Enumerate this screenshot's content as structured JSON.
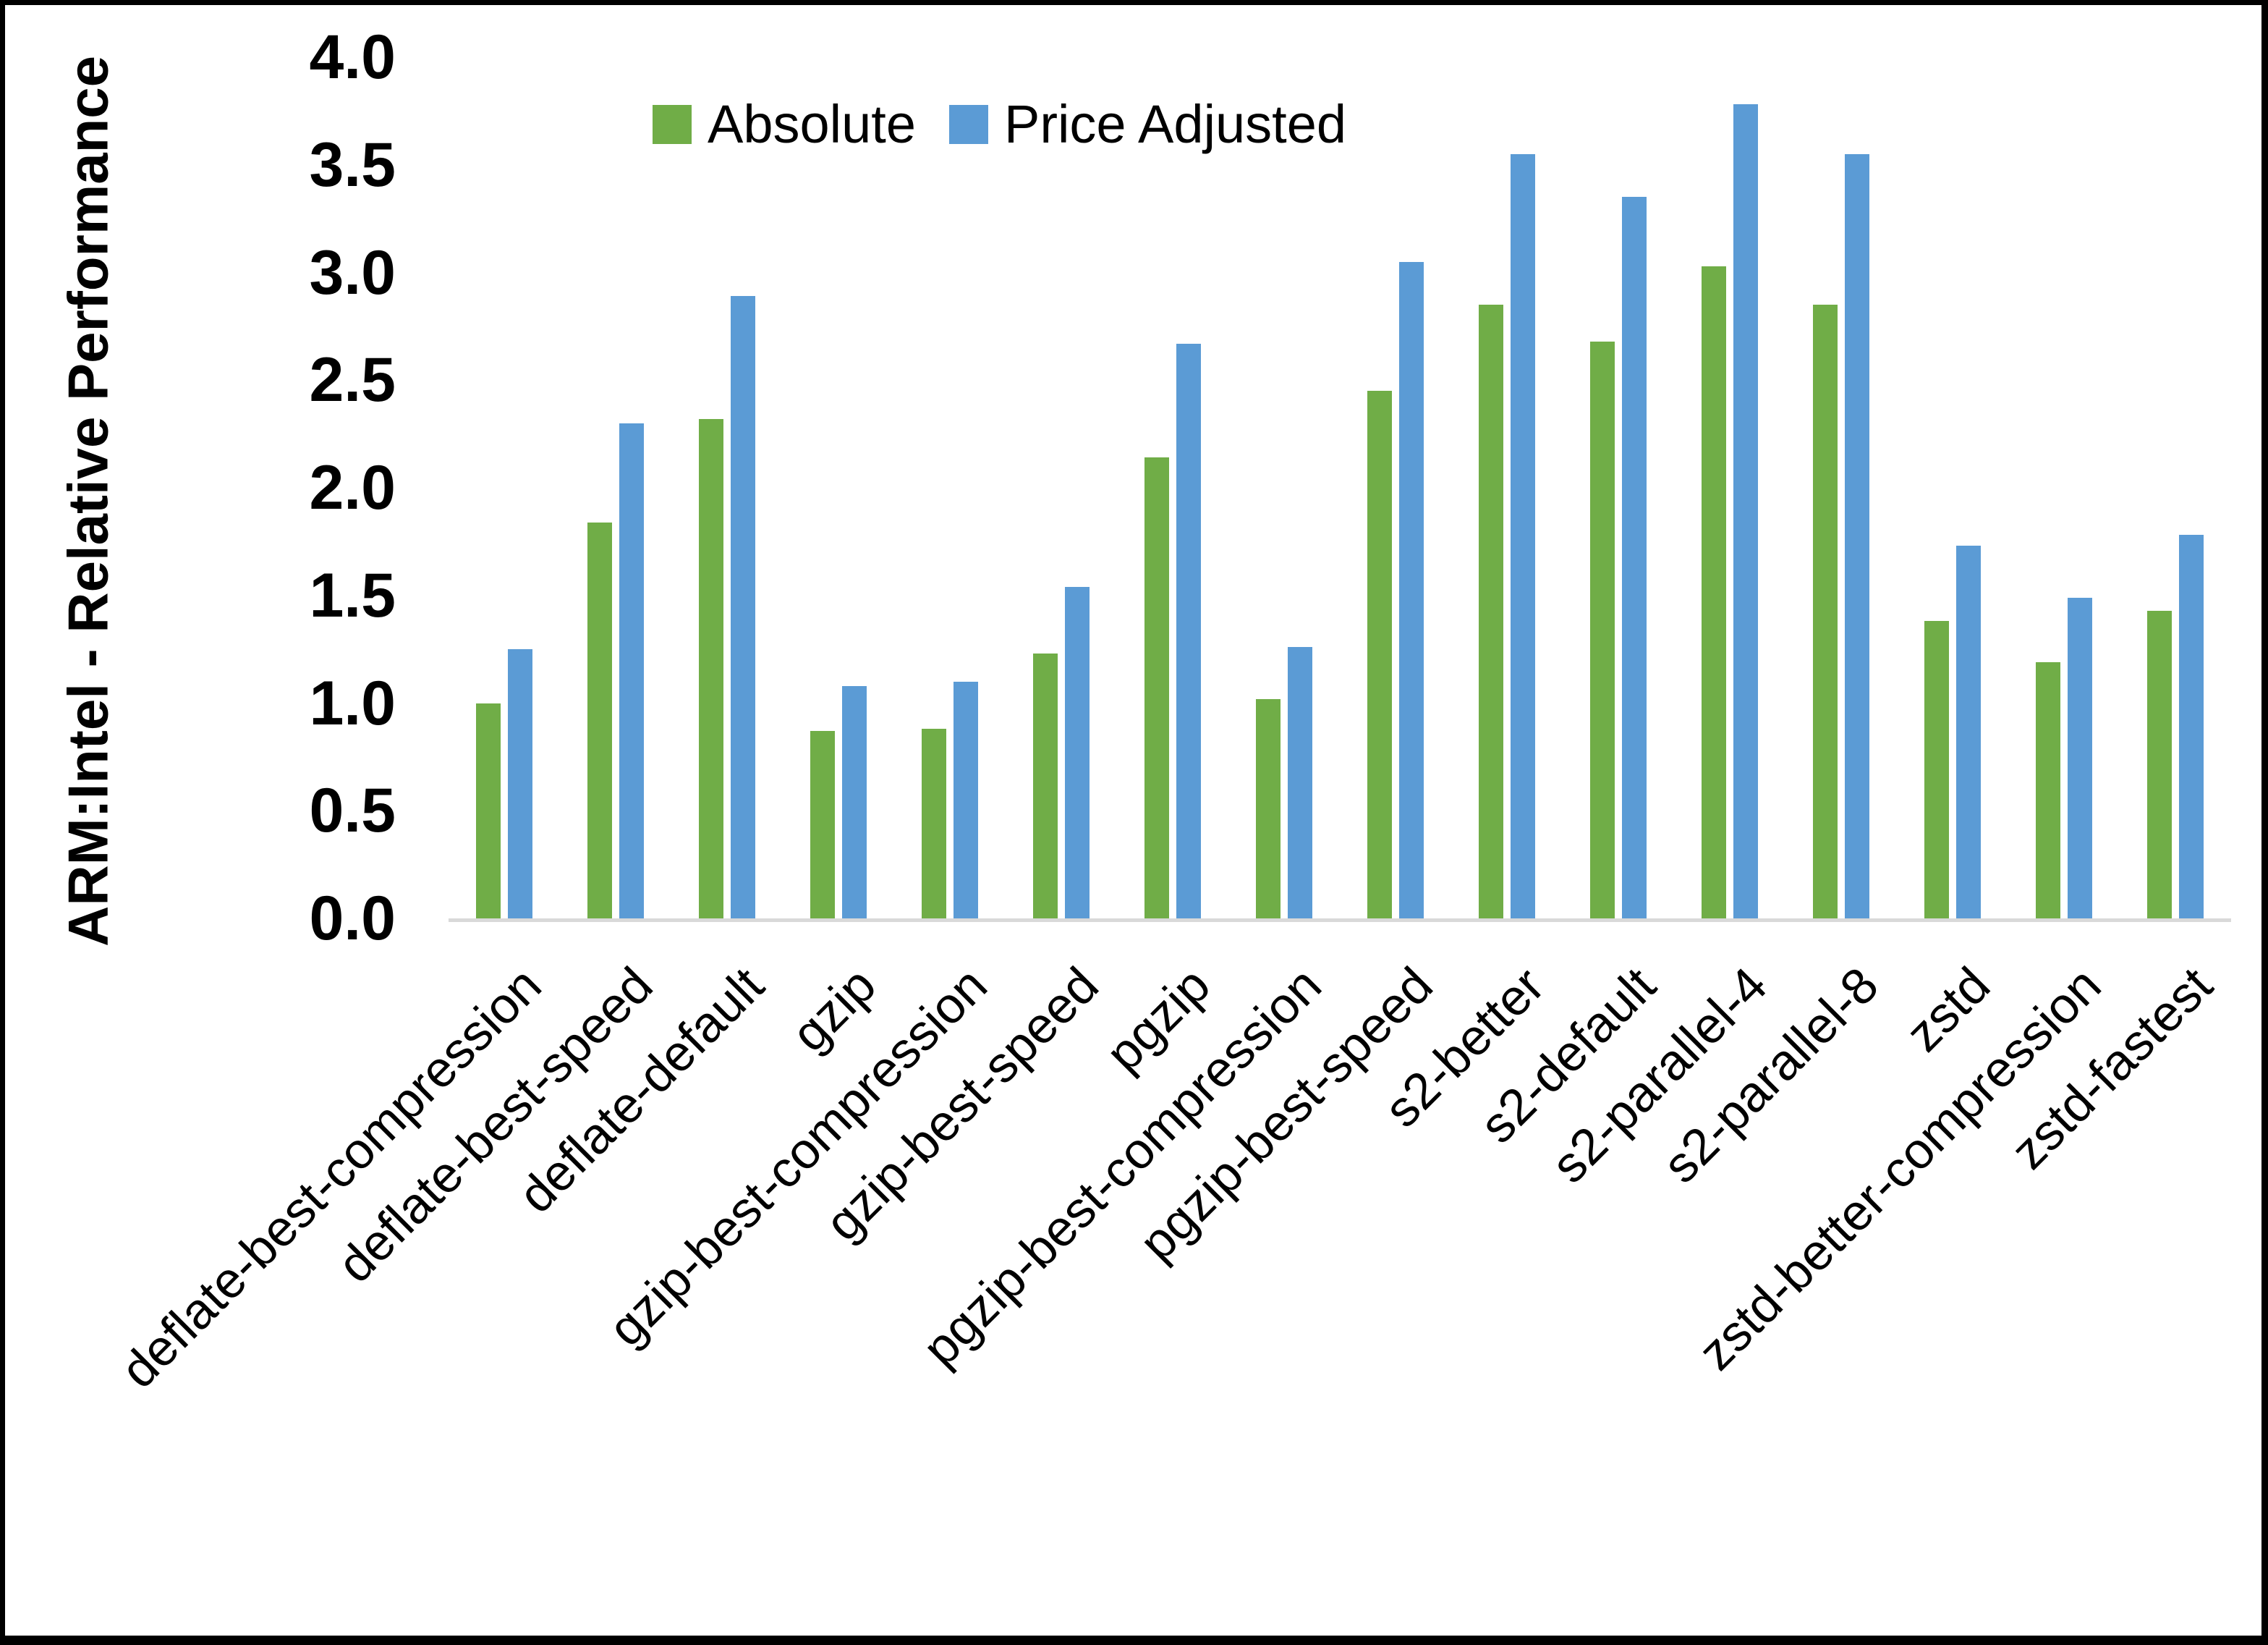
{
  "figure": {
    "background_color": "#ffffff",
    "border_color": "#000000"
  },
  "y_axis": {
    "title": "ARM:Intel - Relative Performance",
    "min": 0.0,
    "max": 4.0,
    "step": 0.5,
    "tick_labels": [
      "0.0",
      "0.5",
      "1.0",
      "1.5",
      "2.0",
      "2.5",
      "3.0",
      "3.5",
      "4.0"
    ]
  },
  "legend": {
    "items": [
      {
        "label": "Absolute",
        "color": "#70AD47"
      },
      {
        "label": "Price Adjusted",
        "color": "#5B9BD5"
      }
    ],
    "position": "top"
  },
  "chart_data": {
    "type": "bar",
    "title": "",
    "xlabel": "",
    "ylabel": "ARM:Intel - Relative Performance",
    "ylim": [
      0.0,
      4.0
    ],
    "grid": false,
    "legend_position": "top",
    "axis_line_color": "#d9d9d9",
    "categories": [
      "deflate-best-compression",
      "deflate-best-speed",
      "deflate-default",
      "gzip",
      "gzip-best-compression",
      "gzip-best-speed",
      "pgzip",
      "pgzip-best-compression",
      "pgzip-best-speed",
      "s2-better",
      "s2-default",
      "s2-parallel-4",
      "s2-parallel-8",
      "zstd",
      "zstd-better-compression",
      "zstd-fastest"
    ],
    "series": [
      {
        "name": "Absolute",
        "color": "#70AD47",
        "values": [
          1.0,
          1.84,
          2.32,
          0.87,
          0.88,
          1.23,
          2.14,
          1.02,
          2.45,
          2.85,
          2.68,
          3.03,
          2.85,
          1.38,
          1.19,
          1.43
        ]
      },
      {
        "name": "Price Adjusted",
        "color": "#5B9BD5",
        "values": [
          1.25,
          2.3,
          2.89,
          1.08,
          1.1,
          1.54,
          2.67,
          1.26,
          3.05,
          3.55,
          3.35,
          3.78,
          3.55,
          1.73,
          1.49,
          1.78
        ]
      }
    ]
  }
}
